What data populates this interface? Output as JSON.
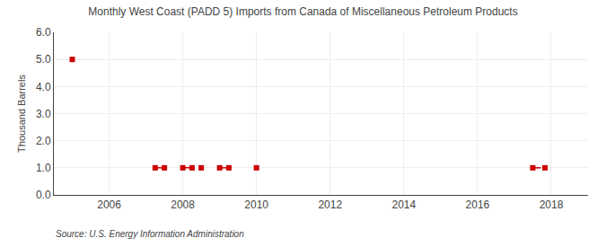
{
  "chart_data": {
    "type": "line",
    "title": "Monthly West Coast (PADD 5) Imports from Canada of Miscellaneous Petroleum Products",
    "y_label": "Thousand Barrels",
    "annotations": [
      "Source: U.S. Energy Information Administration"
    ],
    "x": [
      2005.0,
      null,
      2007.25,
      2007.5,
      null,
      2008.0,
      2008.25,
      2008.5,
      null,
      2009.0,
      2009.25,
      null,
      2010.0,
      null,
      2017.5,
      2017.83
    ],
    "values": [
      5,
      null,
      1,
      1,
      null,
      1,
      1,
      1,
      null,
      1,
      1,
      null,
      1,
      null,
      1,
      1
    ],
    "color": "#cc0000",
    "marker": "square",
    "line_style": "dashed",
    "grid": true,
    "xlim": [
      2004.5,
      2019.0
    ],
    "xticks": [
      2006,
      2008,
      2010,
      2012,
      2014,
      2016,
      2018
    ],
    "ylim": [
      0.0,
      6.0
    ],
    "yticks": [
      {
        "value": 0.0,
        "label": "0.0"
      },
      {
        "value": 1.0,
        "label": "1.0"
      },
      {
        "value": 2.0,
        "label": "2.0"
      },
      {
        "value": 3.0,
        "label": "3.0"
      },
      {
        "value": 4.0,
        "label": "4.0"
      },
      {
        "value": 5.0,
        "label": "5.0"
      },
      {
        "value": 6.0,
        "label": "6.0"
      }
    ]
  }
}
